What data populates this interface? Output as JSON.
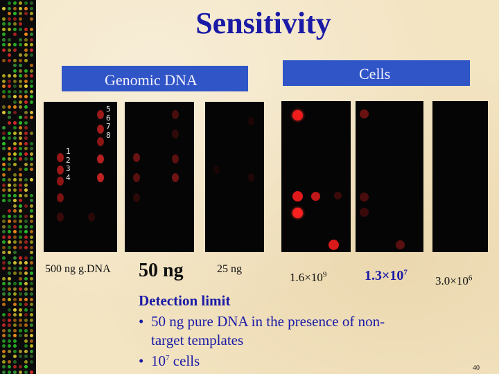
{
  "title": "Sensitivity",
  "headers": {
    "genomic": "Genomic DNA",
    "cells": "Cells"
  },
  "panel1": {
    "rows_top": [
      "5",
      "6",
      "7",
      "8"
    ],
    "rows_bottom": [
      "1",
      "2",
      "3",
      "4"
    ]
  },
  "labels": {
    "p1": "500 ng g.DNA",
    "p2": "50 ng",
    "p3": "25 ng",
    "p4": {
      "base": "1.6",
      "exp": "9"
    },
    "p5": {
      "base": "1.3",
      "exp": "7"
    },
    "p6": {
      "base": "3.0",
      "exp": "6"
    }
  },
  "detection": {
    "heading": "Detection limit",
    "line1": "50 ng pure DNA in the presence of non-",
    "line2": "target templates",
    "line3_pre": "10",
    "line3_exp": "7",
    "line3_post": " cells"
  },
  "page_number": "40"
}
